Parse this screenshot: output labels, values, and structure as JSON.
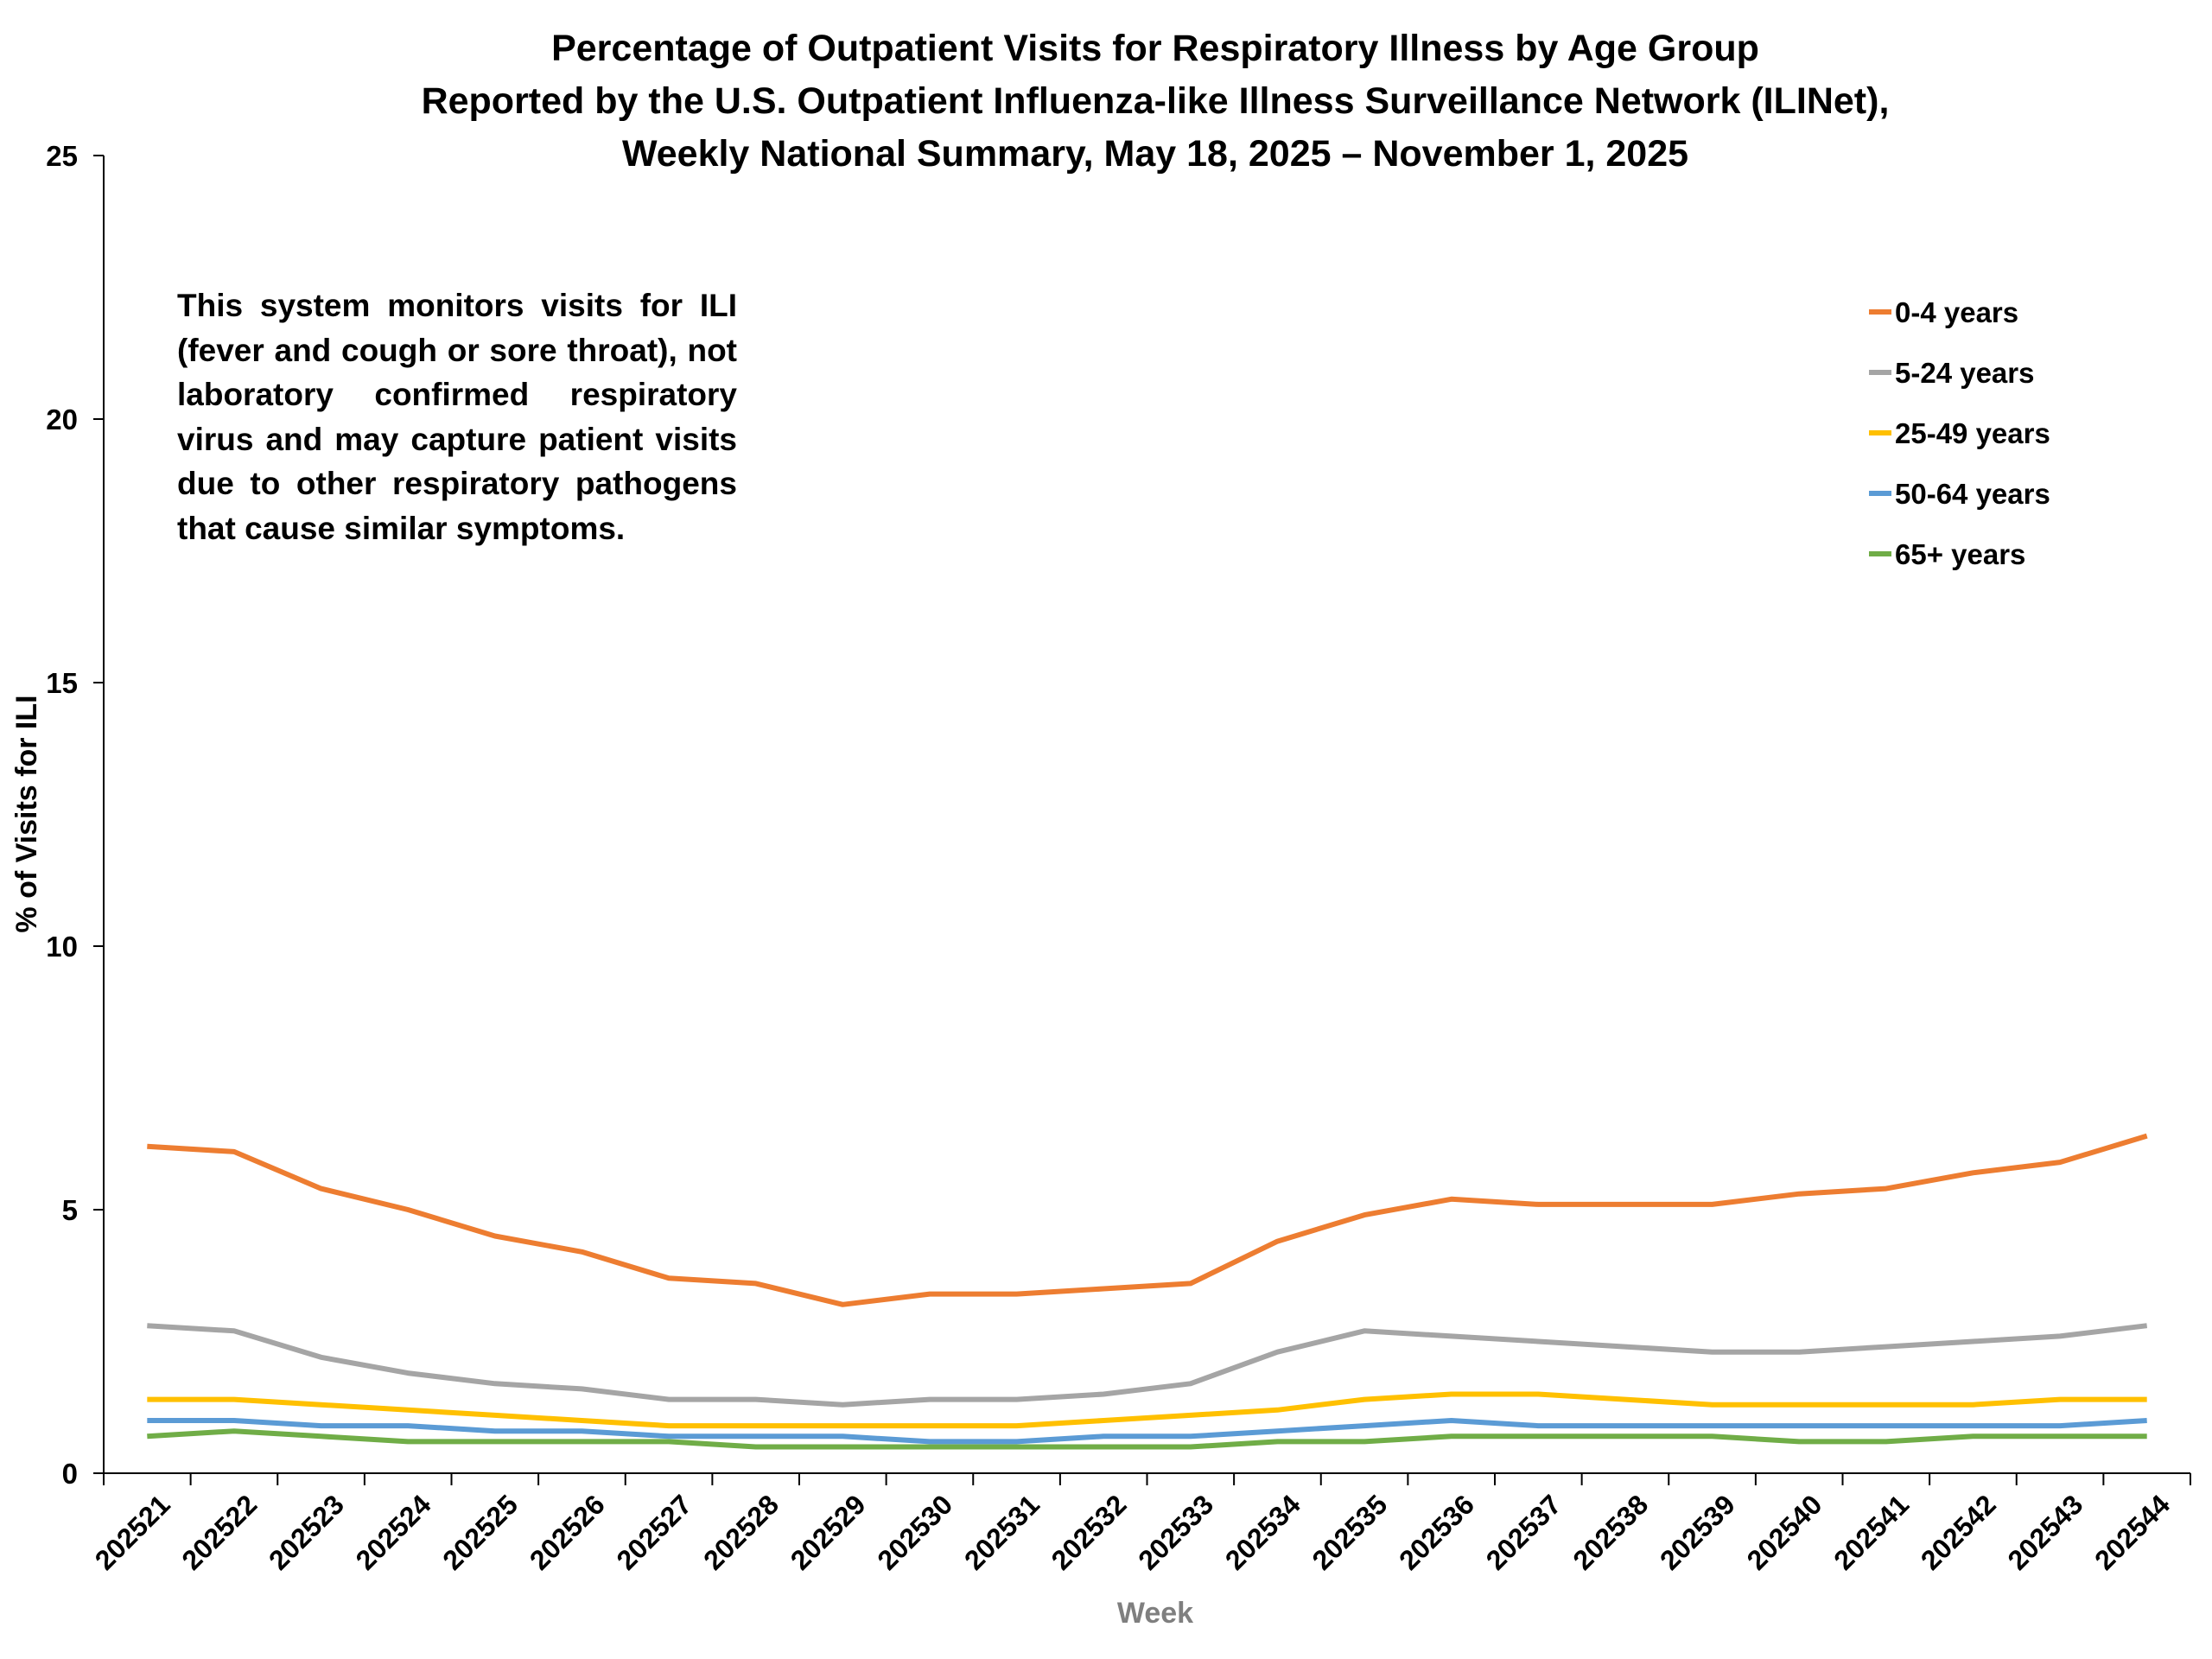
{
  "chart_data": {
    "type": "line",
    "title": [
      "Percentage of Outpatient Visits for Respiratory Illness by Age Group",
      "Reported by the U.S. Outpatient Influenza-like Illness Surveillance Network (ILINet),",
      "Weekly National Summary, May 18, 2025 –  November 1, 2025"
    ],
    "annotation": "This system monitors visits for ILI (fever and cough or sore throat), not laboratory confirmed respiratory virus and may capture patient visits due to other respiratory pathogens that cause similar symptoms.",
    "x_label": "Week",
    "y_label": "% of Visits for ILI",
    "categories": [
      "202521",
      "202522",
      "202523",
      "202524",
      "202525",
      "202526",
      "202527",
      "202528",
      "202529",
      "202530",
      "202531",
      "202532",
      "202533",
      "202534",
      "202535",
      "202536",
      "202537",
      "202538",
      "202539",
      "202540",
      "202541",
      "202542",
      "202543",
      "202544"
    ],
    "ylim": [
      0,
      25
    ],
    "yticks": [
      0,
      5,
      10,
      15,
      20,
      25
    ],
    "legend": "upper right",
    "series": [
      {
        "name": "0-4 years",
        "color": "#ed7d31",
        "values": [
          6.2,
          6.1,
          5.4,
          5.0,
          4.5,
          4.2,
          3.7,
          3.6,
          3.2,
          3.4,
          3.4,
          3.5,
          3.6,
          4.4,
          4.9,
          5.2,
          5.1,
          5.1,
          5.1,
          5.3,
          5.4,
          5.7,
          5.9,
          6.4
        ]
      },
      {
        "name": "5-24 years",
        "color": "#a5a5a5",
        "values": [
          2.8,
          2.7,
          2.2,
          1.9,
          1.7,
          1.6,
          1.4,
          1.4,
          1.3,
          1.4,
          1.4,
          1.5,
          1.7,
          2.3,
          2.7,
          2.6,
          2.5,
          2.4,
          2.3,
          2.3,
          2.4,
          2.5,
          2.6,
          2.8
        ]
      },
      {
        "name": "25-49 years",
        "color": "#ffc000",
        "values": [
          1.4,
          1.4,
          1.3,
          1.2,
          1.1,
          1.0,
          0.9,
          0.9,
          0.9,
          0.9,
          0.9,
          1.0,
          1.1,
          1.2,
          1.4,
          1.5,
          1.5,
          1.4,
          1.3,
          1.3,
          1.3,
          1.3,
          1.4,
          1.4
        ]
      },
      {
        "name": "50-64 years",
        "color": "#5b9bd5",
        "values": [
          1.0,
          1.0,
          0.9,
          0.9,
          0.8,
          0.8,
          0.7,
          0.7,
          0.7,
          0.6,
          0.6,
          0.7,
          0.7,
          0.8,
          0.9,
          1.0,
          0.9,
          0.9,
          0.9,
          0.9,
          0.9,
          0.9,
          0.9,
          1.0
        ]
      },
      {
        "name": "65+ years",
        "color": "#70ad47",
        "values": [
          0.7,
          0.8,
          0.7,
          0.6,
          0.6,
          0.6,
          0.6,
          0.5,
          0.5,
          0.5,
          0.5,
          0.5,
          0.5,
          0.6,
          0.6,
          0.7,
          0.7,
          0.7,
          0.7,
          0.6,
          0.6,
          0.7,
          0.7,
          0.7
        ]
      }
    ]
  }
}
